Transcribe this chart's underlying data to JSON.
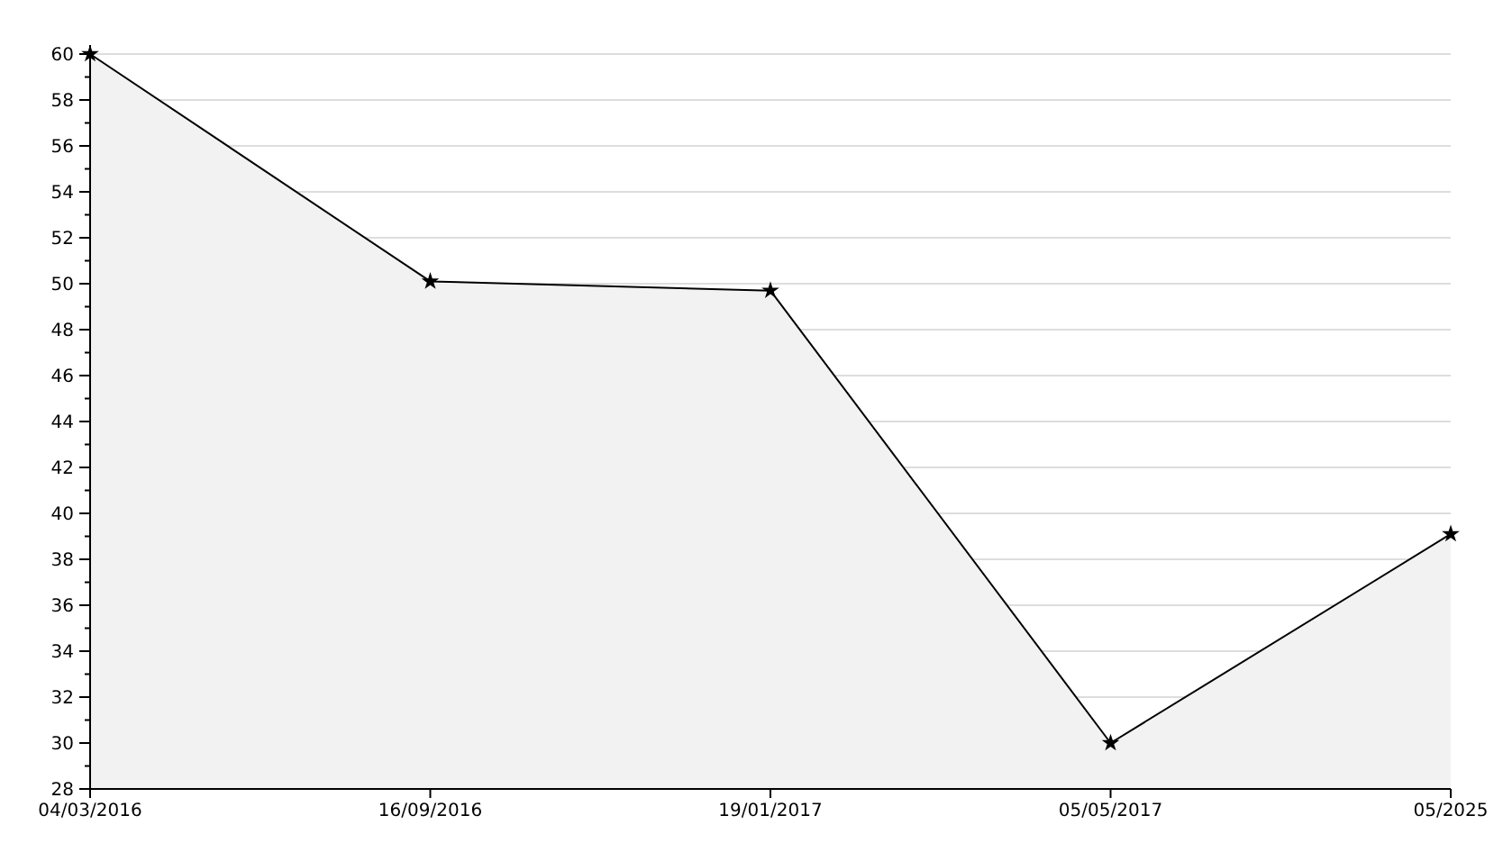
{
  "chart_data": {
    "type": "area",
    "categories": [
      "04/03/2016",
      "16/09/2016",
      "19/01/2017",
      "05/05/2017",
      "05/2025"
    ],
    "series": [
      {
        "color": "#f2f2f2",
        "values": [
          60,
          50.1,
          49.7,
          30,
          39.1
        ]
      }
    ],
    "ylim": [
      28,
      60
    ],
    "yticks": [
      28,
      {
        "value": 29,
        "label": null
      },
      30,
      {
        "value": 31,
        "label": null
      },
      32,
      {
        "value": 33,
        "label": null
      },
      34,
      {
        "value": 35,
        "label": null
      },
      36,
      {
        "value": 37,
        "label": null
      },
      38,
      {
        "value": 39,
        "label": null
      },
      40,
      {
        "value": 41,
        "label": null
      },
      42,
      {
        "value": 43,
        "label": null
      },
      44,
      {
        "value": 45,
        "label": null
      },
      46,
      {
        "value": 47,
        "label": null
      },
      48,
      {
        "value": 49,
        "label": null
      },
      50,
      {
        "value": 51,
        "label": null
      },
      52,
      {
        "value": 53,
        "label": null
      },
      54,
      {
        "value": 55,
        "label": null
      },
      56,
      {
        "value": 57,
        "label": null
      },
      58,
      {
        "value": 59,
        "label": null
      },
      60
    ],
    "grid": "y",
    "marker": "star",
    "line_style": "solid"
  }
}
